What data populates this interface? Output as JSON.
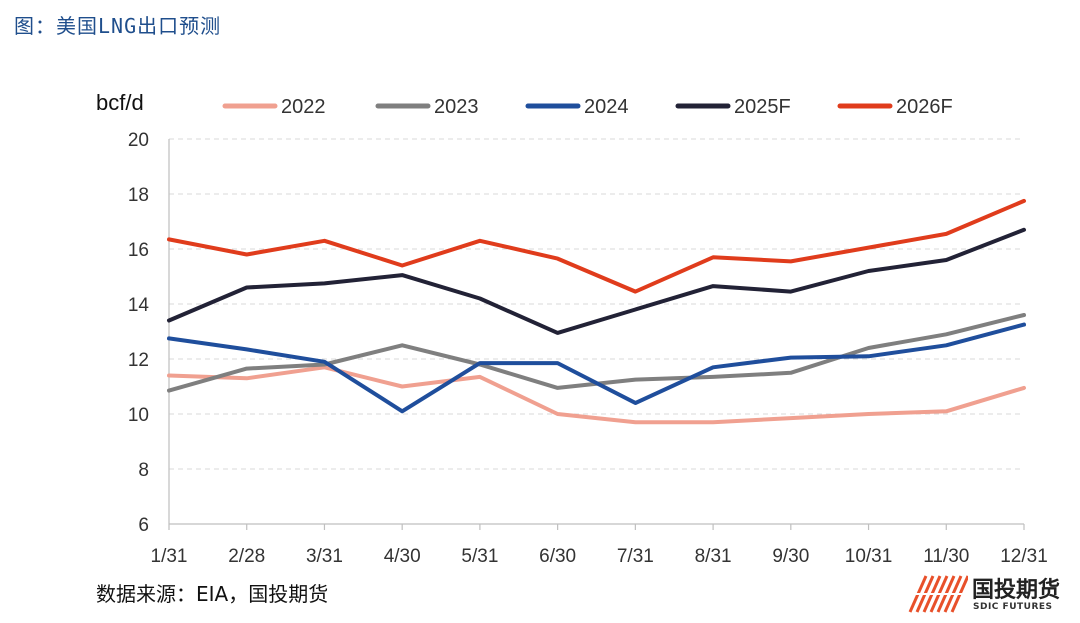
{
  "figure_title": "图：美国LNG出口预测",
  "source_text": "数据来源：EIA，国投期货",
  "logo": {
    "name_cn": "国投期货",
    "name_en": "SDIC FUTURES",
    "icon": "sdic-logo-icon",
    "color": "#e8502a"
  },
  "chart_data": {
    "type": "line",
    "ylabel": "bcf/d",
    "ylim": [
      6,
      20
    ],
    "yticks": [
      6,
      8,
      10,
      12,
      14,
      16,
      18,
      20
    ],
    "grid": true,
    "legend_position": "top",
    "categories": [
      "1/31",
      "2/28",
      "3/31",
      "4/30",
      "5/31",
      "6/30",
      "7/31",
      "8/31",
      "9/30",
      "10/31",
      "11/30",
      "12/31"
    ],
    "series": [
      {
        "name": "2022",
        "color": "#f0a090",
        "values": [
          11.4,
          11.3,
          11.7,
          11.0,
          11.35,
          10.0,
          9.7,
          9.7,
          9.85,
          10.0,
          10.1,
          10.95
        ]
      },
      {
        "name": "2023",
        "color": "#7f7f7f",
        "values": [
          10.85,
          11.65,
          11.8,
          12.5,
          11.8,
          10.95,
          11.25,
          11.35,
          11.5,
          12.4,
          12.9,
          13.6
        ]
      },
      {
        "name": "2024",
        "color": "#1f4e9c",
        "values": [
          12.75,
          12.35,
          11.9,
          10.1,
          11.85,
          11.85,
          10.4,
          11.7,
          12.05,
          12.1,
          12.5,
          13.25
        ]
      },
      {
        "name": "2025F",
        "color": "#222236",
        "values": [
          13.4,
          14.6,
          14.75,
          15.05,
          14.2,
          12.95,
          13.8,
          14.65,
          14.45,
          15.2,
          15.6,
          16.7
        ]
      },
      {
        "name": "2026F",
        "color": "#e03c1c",
        "values": [
          16.35,
          15.8,
          16.3,
          15.4,
          16.3,
          15.65,
          14.45,
          15.7,
          15.55,
          16.05,
          16.55,
          17.75
        ]
      }
    ]
  }
}
